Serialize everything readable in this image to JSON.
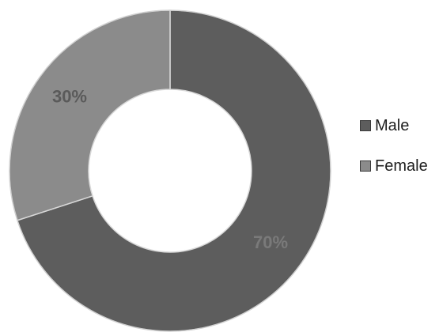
{
  "chart_data": {
    "type": "pie",
    "variant": "donut",
    "categories": [
      "Male",
      "Female"
    ],
    "values": [
      70,
      30
    ],
    "labels": [
      "70%",
      "30%"
    ],
    "colors": [
      "#5d5d5d",
      "#8b8b8b"
    ],
    "label_colors": [
      "#7a7a7a",
      "#5a5a5a"
    ],
    "legend": {
      "position": "right",
      "items": [
        {
          "label": "Male",
          "color": "#5d5d5d"
        },
        {
          "label": "Female",
          "color": "#8b8b8b"
        }
      ]
    },
    "start_angle": "12 o'clock",
    "direction": "clockwise"
  }
}
